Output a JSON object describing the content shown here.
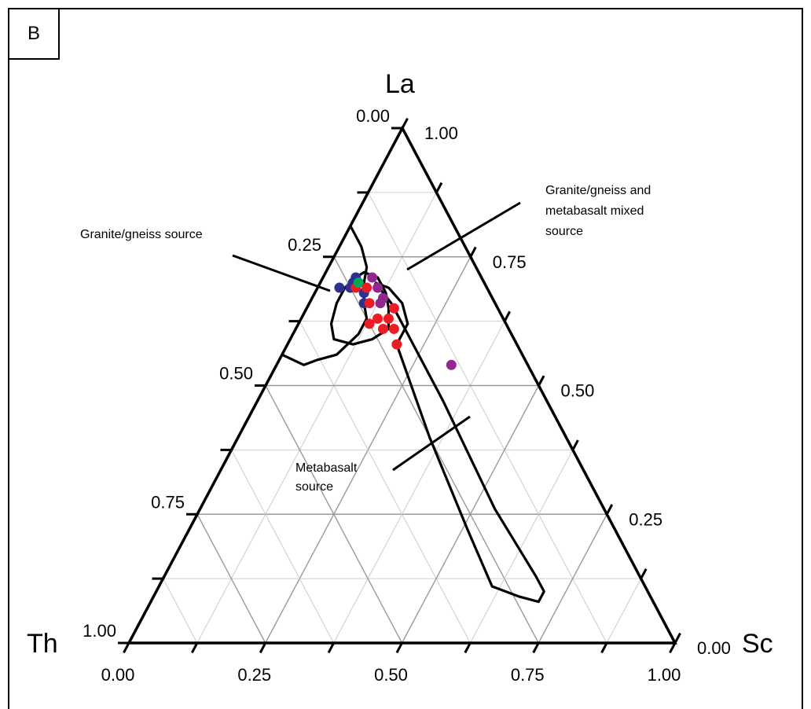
{
  "panel_label": "B",
  "chart_data": {
    "type": "scatter",
    "subtype": "ternary",
    "vertices": {
      "top": "La",
      "left": "Th",
      "right": "Sc"
    },
    "grid": true,
    "grid_step": 0.125,
    "left_axis_ticks": [
      "0.00",
      "0.25",
      "0.50",
      "0.75",
      "1.00"
    ],
    "right_axis_ticks": [
      "1.00",
      "0.75",
      "0.50",
      "0.25",
      "0.00"
    ],
    "bottom_axis_ticks": [
      "0.00",
      "0.25",
      "0.50",
      "0.75",
      "1.00"
    ],
    "fields": [
      {
        "label": "Granite/gneiss source",
        "boundary": [
          [
            0.81,
            0.19,
            0.0
          ],
          [
            0.8,
            0.19,
            0.01
          ],
          [
            0.77,
            0.19,
            0.04
          ],
          [
            0.73,
            0.2,
            0.07
          ],
          [
            0.7,
            0.22,
            0.08
          ],
          [
            0.66,
            0.24,
            0.1
          ],
          [
            0.63,
            0.25,
            0.12
          ],
          [
            0.6,
            0.28,
            0.12
          ],
          [
            0.56,
            0.34,
            0.1
          ],
          [
            0.55,
            0.38,
            0.07
          ],
          [
            0.54,
            0.41,
            0.05
          ],
          [
            0.56,
            0.44,
            0.0
          ]
        ]
      },
      {
        "label": "Granite/gneiss and metabasalt mixed source",
        "boundary": [
          [
            0.71,
            0.23,
            0.06
          ],
          [
            0.72,
            0.21,
            0.07
          ],
          [
            0.71,
            0.19,
            0.1
          ],
          [
            0.68,
            0.19,
            0.13
          ],
          [
            0.65,
            0.2,
            0.15
          ],
          [
            0.61,
            0.22,
            0.17
          ],
          [
            0.59,
            0.26,
            0.15
          ],
          [
            0.58,
            0.3,
            0.12
          ],
          [
            0.59,
            0.33,
            0.08
          ],
          [
            0.62,
            0.32,
            0.06
          ],
          [
            0.66,
            0.29,
            0.05
          ],
          [
            0.69,
            0.26,
            0.05
          ],
          [
            0.71,
            0.23,
            0.06
          ]
        ]
      },
      {
        "label": "Metabasalt source",
        "boundary": [
          [
            0.7,
            0.2,
            0.1
          ],
          [
            0.69,
            0.18,
            0.13
          ],
          [
            0.66,
            0.17,
            0.17
          ],
          [
            0.62,
            0.18,
            0.2
          ],
          [
            0.58,
            0.22,
            0.2
          ],
          [
            0.4,
            0.25,
            0.35
          ],
          [
            0.22,
            0.27,
            0.51
          ],
          [
            0.11,
            0.28,
            0.61
          ],
          [
            0.09,
            0.24,
            0.67
          ],
          [
            0.08,
            0.21,
            0.71
          ],
          [
            0.1,
            0.19,
            0.71
          ],
          [
            0.13,
            0.19,
            0.68
          ],
          [
            0.26,
            0.2,
            0.54
          ],
          [
            0.47,
            0.19,
            0.34
          ],
          [
            0.6,
            0.19,
            0.21
          ],
          [
            0.66,
            0.19,
            0.15
          ],
          [
            0.7,
            0.2,
            0.1
          ]
        ]
      }
    ],
    "series": [
      {
        "color": "#2e3192",
        "points": [
          [
            0.69,
            0.27,
            0.04
          ],
          [
            0.7,
            0.24,
            0.06
          ],
          [
            0.71,
            0.23,
            0.06
          ],
          [
            0.69,
            0.25,
            0.06
          ],
          [
            0.66,
            0.24,
            0.1
          ],
          [
            0.68,
            0.23,
            0.09
          ]
        ]
      },
      {
        "color": "#ec1c24",
        "points": [
          [
            0.69,
            0.24,
            0.07
          ],
          [
            0.66,
            0.23,
            0.11
          ],
          [
            0.63,
            0.23,
            0.14
          ],
          [
            0.62,
            0.25,
            0.13
          ],
          [
            0.61,
            0.23,
            0.16
          ],
          [
            0.63,
            0.21,
            0.16
          ],
          [
            0.65,
            0.19,
            0.16
          ],
          [
            0.61,
            0.21,
            0.18
          ],
          [
            0.58,
            0.22,
            0.2
          ],
          [
            0.69,
            0.22,
            0.09
          ]
        ]
      },
      {
        "color": "#92278f",
        "points": [
          [
            0.71,
            0.2,
            0.09
          ],
          [
            0.69,
            0.2,
            0.11
          ],
          [
            0.67,
            0.2,
            0.13
          ],
          [
            0.66,
            0.21,
            0.13
          ],
          [
            0.54,
            0.14,
            0.32
          ]
        ]
      },
      {
        "color": "#00a651",
        "points": [
          [
            0.7,
            0.23,
            0.07
          ]
        ]
      }
    ]
  }
}
